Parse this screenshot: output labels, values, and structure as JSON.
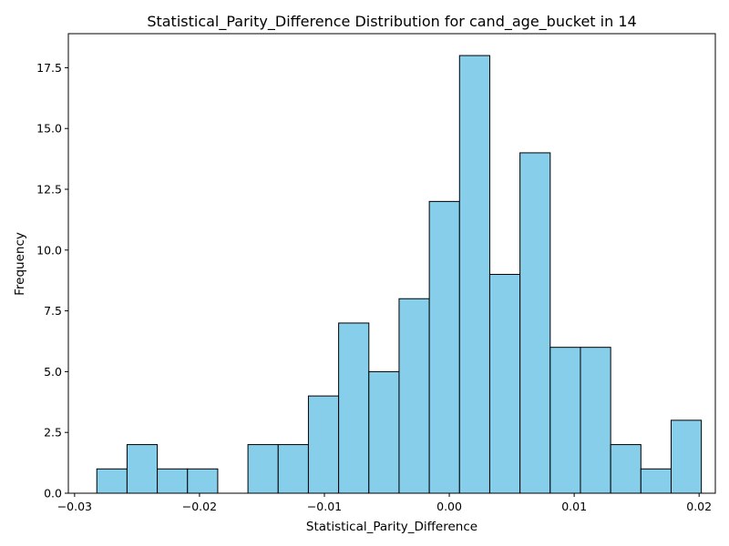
{
  "chart_data": {
    "type": "bar",
    "title": "Statistical_Parity_Difference Distribution for cand_age_bucket in 14",
    "xlabel": "Statistical_Parity_Difference",
    "ylabel": "Frequency",
    "bar_color": "#87ceeb",
    "edge_color": "#000000",
    "xlim": [
      -0.0305,
      0.0213
    ],
    "ylim": [
      0,
      18.9
    ],
    "grid": false,
    "bins": [
      {
        "x0": -0.02822,
        "x1": -0.0258,
        "count": 1
      },
      {
        "x0": -0.0258,
        "x1": -0.02338,
        "count": 2
      },
      {
        "x0": -0.02338,
        "x1": -0.02096,
        "count": 1
      },
      {
        "x0": -0.02096,
        "x1": -0.01854,
        "count": 1
      },
      {
        "x0": -0.01854,
        "x1": -0.01612,
        "count": 0
      },
      {
        "x0": -0.01612,
        "x1": -0.0137,
        "count": 2
      },
      {
        "x0": -0.0137,
        "x1": -0.01128,
        "count": 2
      },
      {
        "x0": -0.01128,
        "x1": -0.00886,
        "count": 4
      },
      {
        "x0": -0.00886,
        "x1": -0.00644,
        "count": 7
      },
      {
        "x0": -0.00644,
        "x1": -0.00402,
        "count": 5
      },
      {
        "x0": -0.00402,
        "x1": -0.0016,
        "count": 8
      },
      {
        "x0": -0.0016,
        "x1": 0.00082,
        "count": 12
      },
      {
        "x0": 0.00082,
        "x1": 0.00324,
        "count": 18
      },
      {
        "x0": 0.00324,
        "x1": 0.00566,
        "count": 9
      },
      {
        "x0": 0.00566,
        "x1": 0.00808,
        "count": 14
      },
      {
        "x0": 0.00808,
        "x1": 0.0105,
        "count": 6
      },
      {
        "x0": 0.0105,
        "x1": 0.01292,
        "count": 6
      },
      {
        "x0": 0.01292,
        "x1": 0.01534,
        "count": 2
      },
      {
        "x0": 0.01534,
        "x1": 0.01776,
        "count": 1
      },
      {
        "x0": 0.01776,
        "x1": 0.02018,
        "count": 3
      }
    ],
    "x_ticks": [
      {
        "value": -0.03,
        "label": "−0.03"
      },
      {
        "value": -0.02,
        "label": "−0.02"
      },
      {
        "value": -0.01,
        "label": "−0.01"
      },
      {
        "value": 0.0,
        "label": "0.00"
      },
      {
        "value": 0.01,
        "label": "0.01"
      },
      {
        "value": 0.02,
        "label": "0.02"
      }
    ],
    "y_ticks": [
      {
        "value": 0,
        "label": "0.0"
      },
      {
        "value": 2.5,
        "label": "2.5"
      },
      {
        "value": 5,
        "label": "5.0"
      },
      {
        "value": 7.5,
        "label": "7.5"
      },
      {
        "value": 10,
        "label": "10.0"
      },
      {
        "value": 12.5,
        "label": "12.5"
      },
      {
        "value": 15,
        "label": "15.0"
      },
      {
        "value": 17.5,
        "label": "17.5"
      }
    ]
  }
}
